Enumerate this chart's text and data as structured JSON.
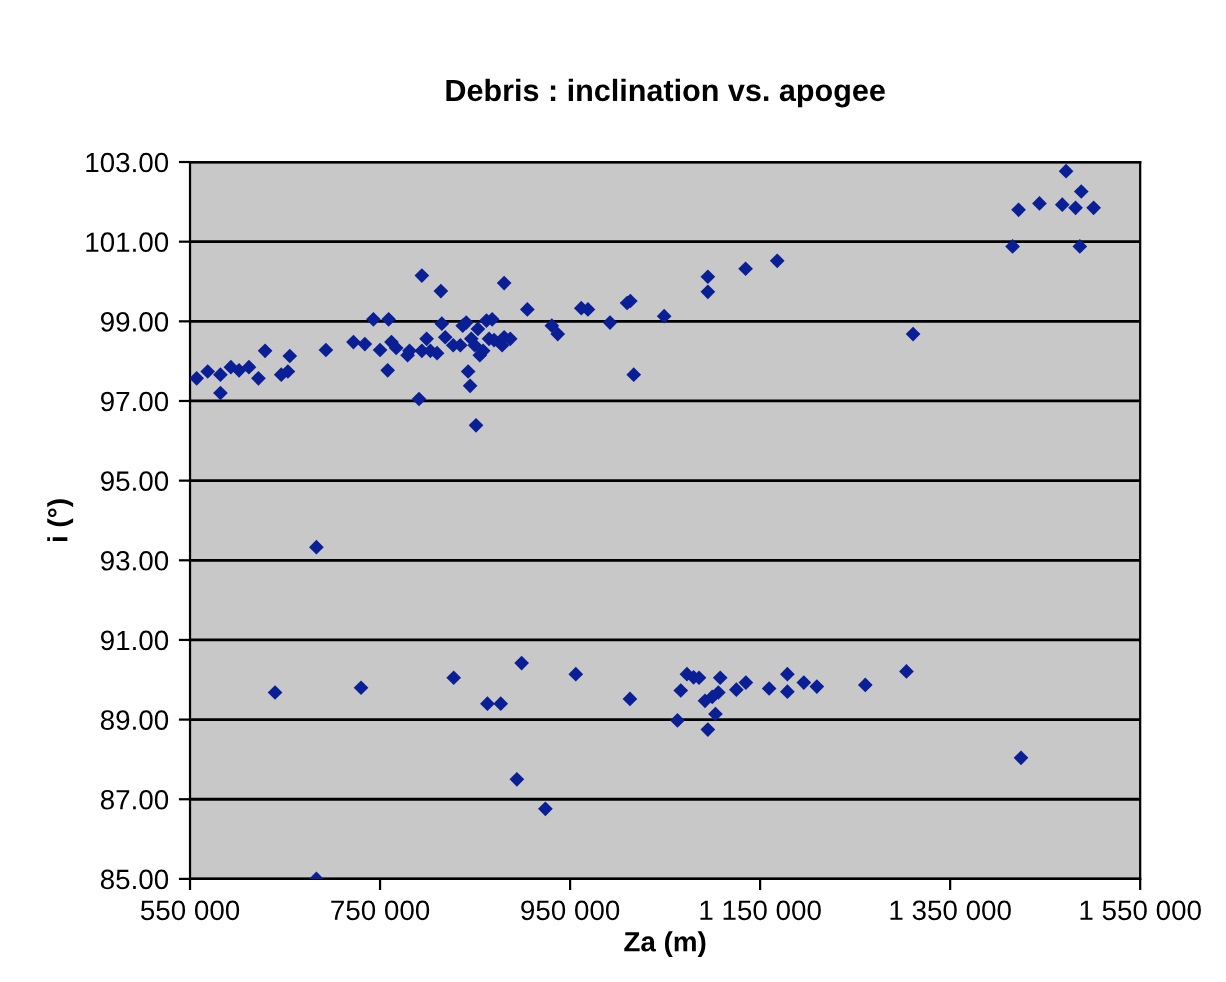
{
  "chart_data": {
    "type": "scatter",
    "title": "Debris : inclination vs. apogee",
    "xlabel": "Za (m)",
    "ylabel": "i (°)",
    "xlim": [
      550000,
      1550000
    ],
    "xticks": [
      {
        "value": 550000,
        "label": "550 000"
      },
      {
        "value": 750000,
        "label": "750 000"
      },
      {
        "value": 950000,
        "label": "950 000"
      },
      {
        "value": 1150000,
        "label": "1 150 000"
      },
      {
        "value": 1350000,
        "label": "1 350 000"
      },
      {
        "value": 1550000,
        "label": "1 550 000"
      }
    ],
    "ylim": [
      85,
      103
    ],
    "yticks": [
      {
        "value": 85,
        "label": "85.00"
      },
      {
        "value": 87,
        "label": "87.00"
      },
      {
        "value": 89,
        "label": "89.00"
      },
      {
        "value": 91,
        "label": "91.00"
      },
      {
        "value": 93,
        "label": "93.00"
      },
      {
        "value": 95,
        "label": "95.00"
      },
      {
        "value": 97,
        "label": "97.00"
      },
      {
        "value": 99,
        "label": "99.00"
      },
      {
        "value": 101,
        "label": "101.00"
      },
      {
        "value": 103,
        "label": "103.00"
      }
    ],
    "grid": "y",
    "marker": "diamond",
    "series": [
      {
        "color": "#0a1e96",
        "x": [
          557000,
          568600,
          582000,
          582000,
          593000,
          601600,
          612000,
          622000,
          629000,
          646000,
          653000,
          655000,
          693000,
          722000,
          734000,
          743000,
          750000,
          758000,
          759000,
          762000,
          767000,
          779000,
          781000,
          791000,
          794000,
          794000,
          799000,
          803000,
          810000,
          814000,
          815000,
          818600,
          827000,
          834500,
          837000,
          840700,
          842700,
          844800,
          846000,
          849600,
          851000,
          853000,
          855000,
          858500,
          862000,
          864700,
          868000,
          870000,
          878500,
          880600,
          880600,
          887000,
          905000,
          930800,
          937000,
          961800,
          968800,
          992000,
          1010000,
          1013400,
          1017000,
          1049000,
          1095000,
          1095000,
          1134700,
          1168000,
          1311000,
          1415700,
          1422000,
          1444000,
          1468000,
          1472000,
          1482000,
          1486500,
          1488000,
          1501000,
          683000,
          639500,
          730000,
          827500,
          863000,
          877000,
          899000,
          894000,
          924000,
          956000,
          1013000,
          1063000,
          1066500,
          1073000,
          683000,
          1080000,
          1085700,
          1092000,
          1095000,
          1099600,
          1103000,
          1106000,
          1108000,
          1125000,
          1135000,
          1159500,
          1178700,
          1178700,
          1196000,
          1209700,
          1260700,
          1304000,
          1424600
        ],
        "values": [
          97.57,
          97.74,
          97.66,
          97.2,
          97.85,
          97.77,
          97.85,
          97.57,
          98.26,
          97.66,
          97.74,
          98.13,
          98.28,
          98.48,
          98.43,
          99.05,
          98.28,
          97.77,
          99.05,
          98.48,
          98.33,
          98.15,
          98.26,
          97.05,
          100.15,
          98.26,
          98.56,
          98.26,
          98.2,
          99.76,
          98.94,
          98.6,
          98.4,
          98.4,
          98.89,
          98.97,
          97.74,
          97.38,
          98.56,
          98.4,
          96.39,
          98.81,
          98.15,
          98.26,
          99.02,
          98.56,
          99.05,
          98.53,
          98.4,
          99.96,
          98.6,
          98.56,
          99.3,
          98.89,
          98.68,
          99.33,
          99.3,
          98.97,
          99.46,
          99.51,
          97.66,
          99.13,
          100.12,
          99.74,
          100.32,
          100.52,
          98.68,
          100.88,
          101.8,
          101.96,
          101.93,
          102.77,
          101.85,
          100.88,
          102.26,
          101.85,
          93.33,
          89.68,
          89.8,
          90.05,
          89.4,
          89.4,
          90.42,
          87.5,
          86.76,
          90.14,
          89.52,
          88.98,
          89.73,
          90.14,
          85.0,
          90.06,
          90.05,
          89.47,
          88.75,
          89.57,
          89.14,
          89.68,
          90.05,
          89.75,
          89.93,
          89.78,
          90.14,
          89.7,
          89.93,
          89.83,
          89.87,
          90.21,
          88.04
        ]
      }
    ]
  }
}
